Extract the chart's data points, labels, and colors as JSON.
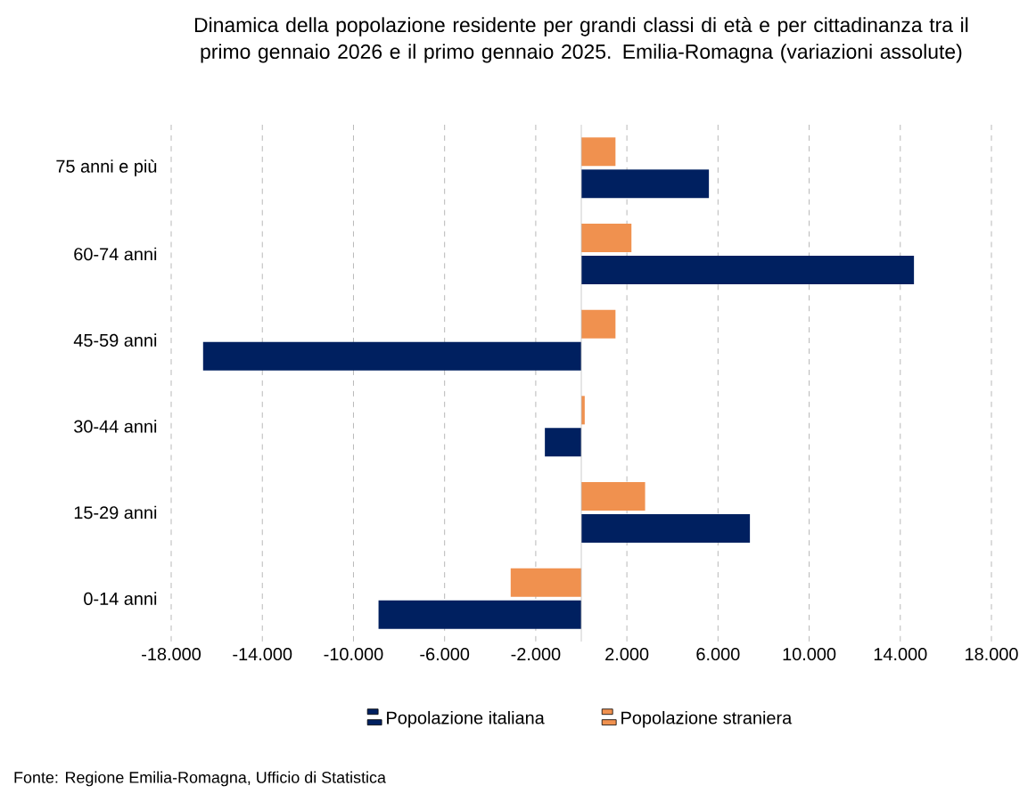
{
  "chart_data": {
    "type": "bar",
    "orientation": "horizontal",
    "title": "Dinamica della popolazione residente per grandi classi di età e per cittadinanza tra il primo gennaio 2026 e il primo gennaio 2025. Emilia-Romagna (variazioni assolute)",
    "categories": [
      "75 anni e più",
      "60-74 anni",
      "45-59 anni",
      "30-44 anni",
      "15-29 anni",
      "0-14 anni"
    ],
    "series": [
      {
        "name": "Popolazione italiana",
        "color": "#002060",
        "values": [
          5600,
          14600,
          -16600,
          -1600,
          7400,
          -8900
        ]
      },
      {
        "name": "Popolazione straniera",
        "color": "#f0914f",
        "values": [
          1500,
          2200,
          1500,
          150,
          2800,
          -3100
        ]
      }
    ],
    "xlim": [
      -18000,
      18000
    ],
    "xticks": [
      {
        "value": -18000,
        "label": "-18.000"
      },
      {
        "value": -14000,
        "label": "-14.000"
      },
      {
        "value": -10000,
        "label": "-10.000"
      },
      {
        "value": -6000,
        "label": "-6.000"
      },
      {
        "value": -2000,
        "label": "-2.000"
      },
      {
        "value": 2000,
        "label": "2.000"
      },
      {
        "value": 6000,
        "label": "6.000"
      },
      {
        "value": 10000,
        "label": "10.000"
      },
      {
        "value": 14000,
        "label": "14.000"
      },
      {
        "value": 18000,
        "label": "18.000"
      }
    ],
    "grid": "x",
    "legend": "bottom",
    "annotations": [
      "Fonte: Regione Emilia-Romagna, Ufficio di Statistica"
    ]
  }
}
